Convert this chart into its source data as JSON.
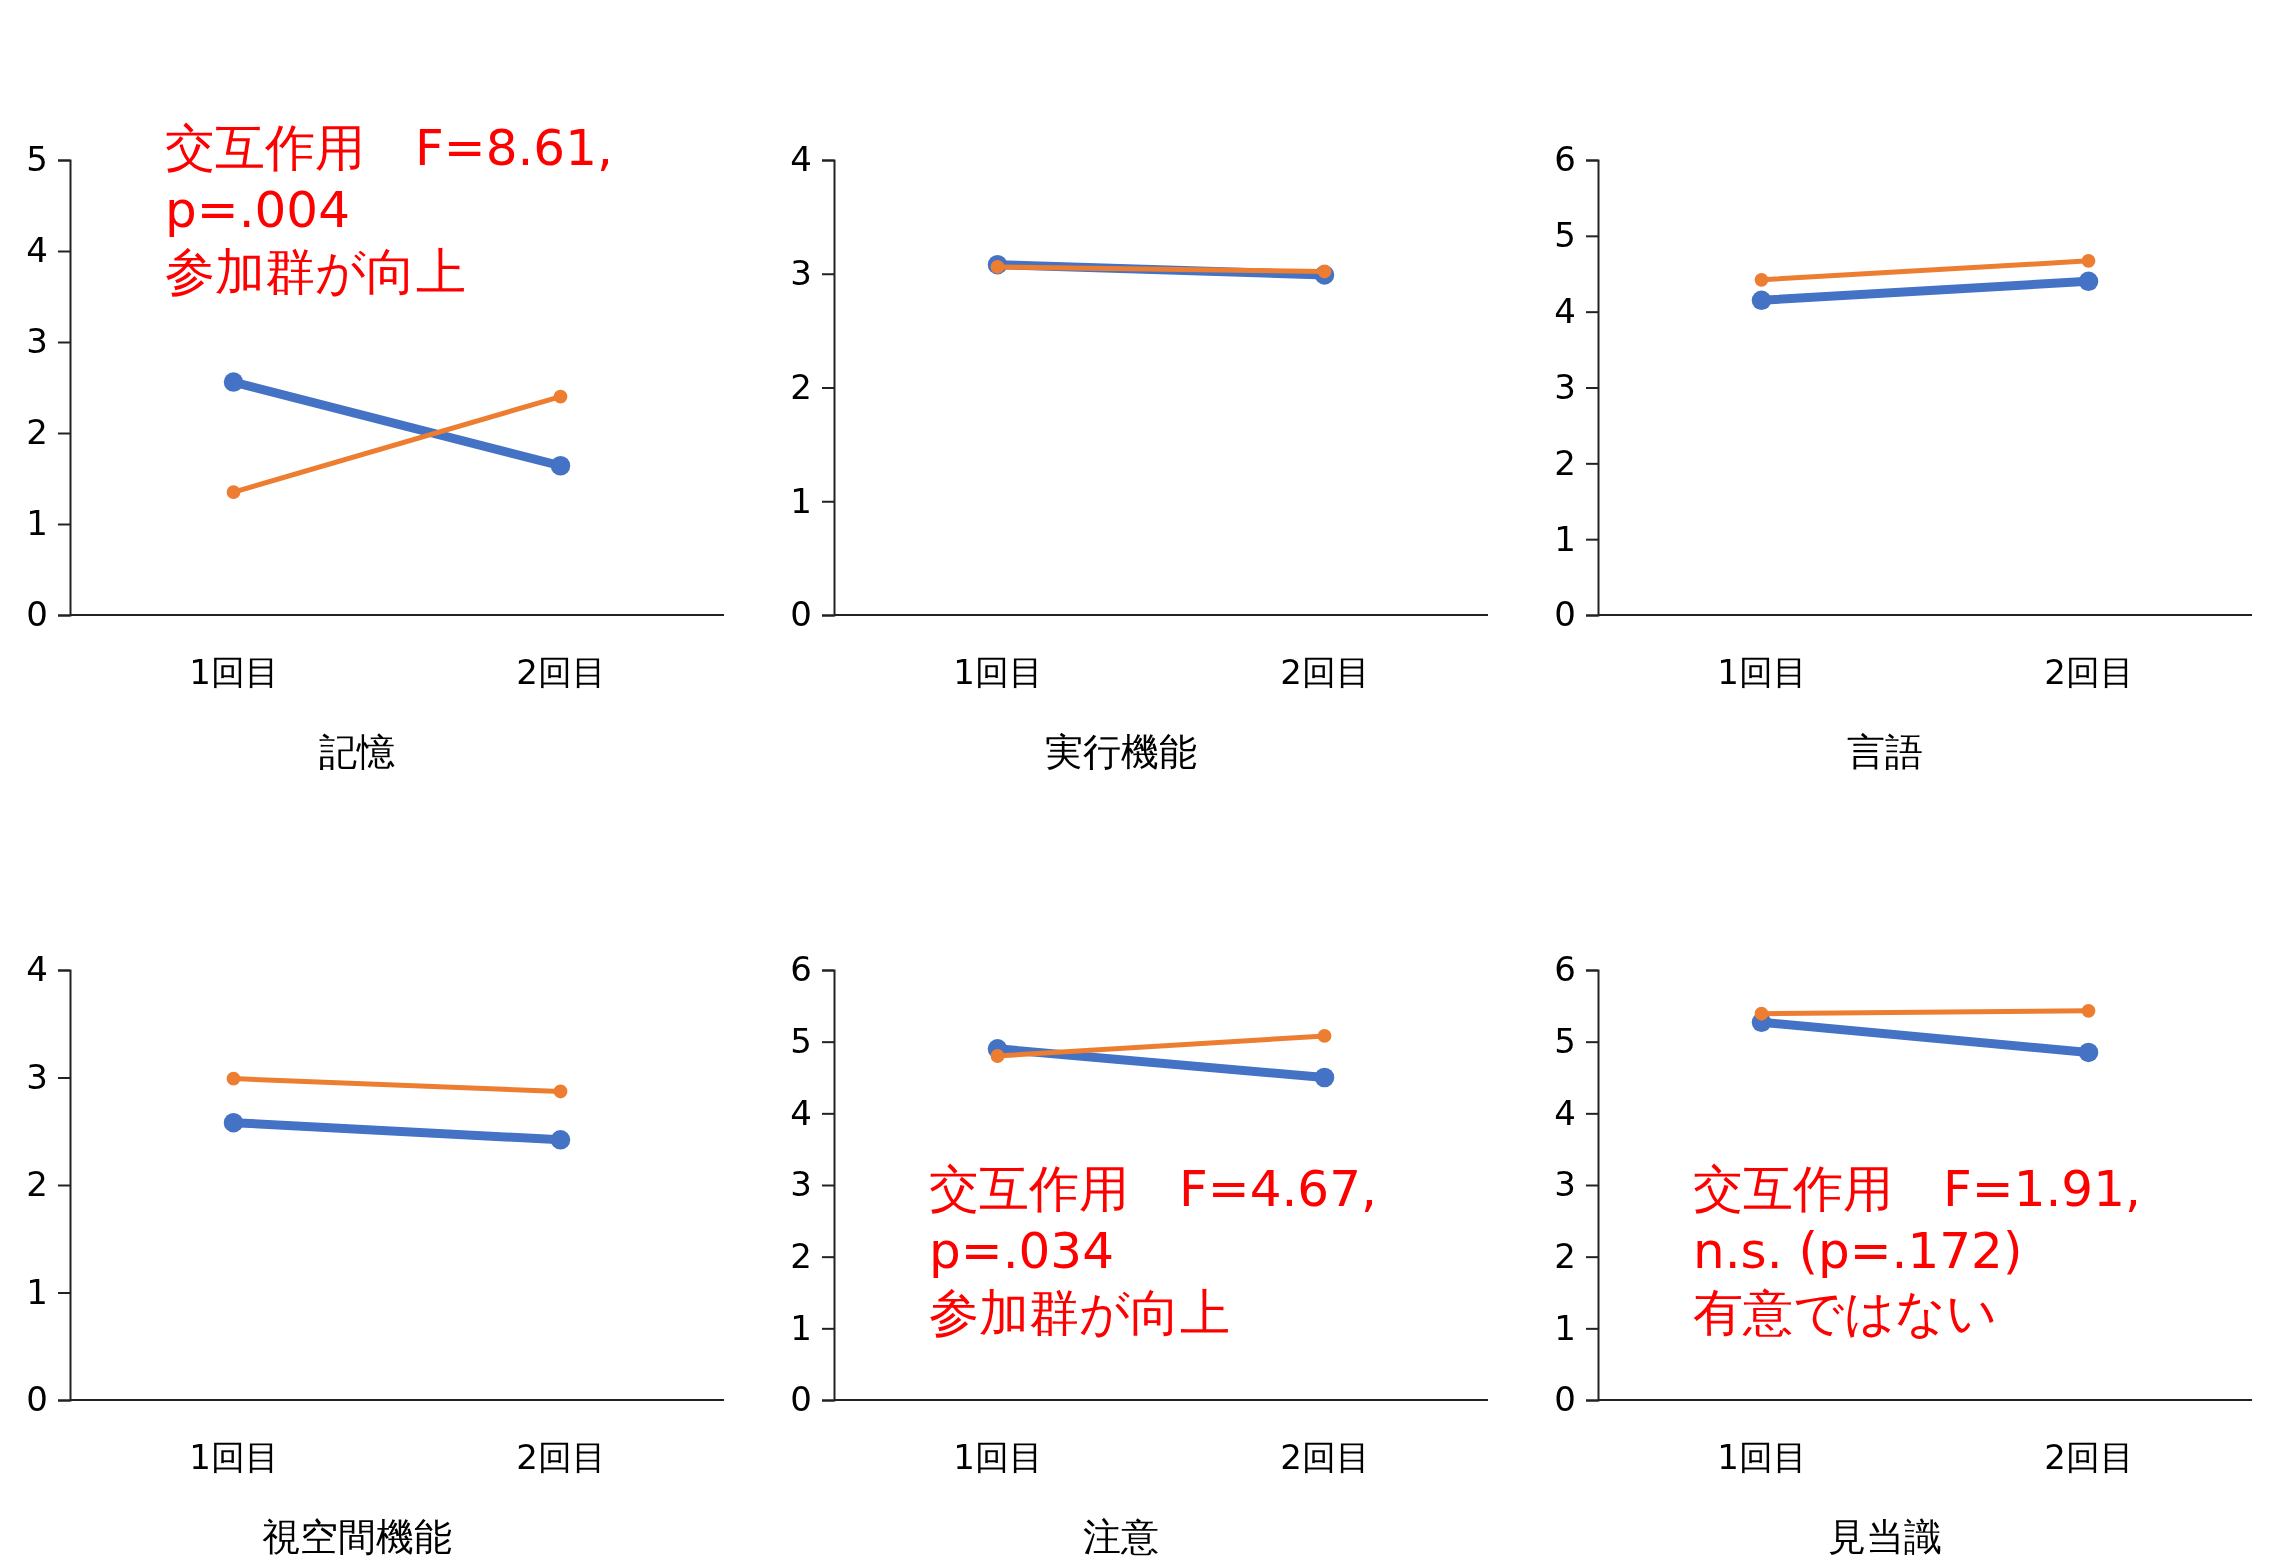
{
  "chart_data": [
    {
      "type": "line",
      "xlabel": "記憶",
      "categories": [
        "1回目",
        "2回目"
      ],
      "ylim": [
        0,
        5
      ],
      "yticks": [
        0,
        1,
        2,
        3,
        4,
        5
      ],
      "marker": "circle",
      "annotations": [
        "交互作用　F=8.61,",
        "p=.004",
        "参加群が向上"
      ],
      "series": [
        {
          "color": "#4472c4",
          "values": [
            2.56,
            1.64
          ]
        },
        {
          "color": "#ed7d31",
          "values": [
            1.35,
            2.4
          ]
        }
      ]
    },
    {
      "type": "line",
      "xlabel": "実行機能",
      "categories": [
        "1回目",
        "2回目"
      ],
      "ylim": [
        0,
        4
      ],
      "yticks": [
        0,
        1,
        2,
        3,
        4
      ],
      "marker": "circle",
      "series": [
        {
          "color": "#4472c4",
          "values": [
            3.08,
            2.99
          ]
        },
        {
          "color": "#ed7d31",
          "values": [
            3.06,
            3.02
          ]
        }
      ]
    },
    {
      "type": "line",
      "xlabel": "言語",
      "categories": [
        "1回目",
        "2回目"
      ],
      "ylim": [
        0,
        6
      ],
      "yticks": [
        0,
        1,
        2,
        3,
        4,
        5,
        6
      ],
      "marker": "circle",
      "series": [
        {
          "color": "#4472c4",
          "values": [
            4.15,
            4.4
          ]
        },
        {
          "color": "#ed7d31",
          "values": [
            4.42,
            4.67
          ]
        }
      ]
    },
    {
      "type": "line",
      "xlabel": "視空間機能",
      "categories": [
        "1回目",
        "2回目"
      ],
      "ylim": [
        0,
        4
      ],
      "yticks": [
        0,
        1,
        2,
        3,
        4
      ],
      "marker": "circle",
      "series": [
        {
          "color": "#4472c4",
          "values": [
            2.58,
            2.42
          ]
        },
        {
          "color": "#ed7d31",
          "values": [
            2.99,
            2.87
          ]
        }
      ]
    },
    {
      "type": "line",
      "xlabel": "注意",
      "categories": [
        "1回目",
        "2回目"
      ],
      "ylim": [
        0,
        6
      ],
      "yticks": [
        0,
        1,
        2,
        3,
        4,
        5,
        6
      ],
      "marker": "circle",
      "annotations": [
        "交互作用　F=4.67,",
        "p=.034",
        "参加群が向上"
      ],
      "series": [
        {
          "color": "#4472c4",
          "values": [
            4.9,
            4.5
          ]
        },
        {
          "color": "#ed7d31",
          "values": [
            4.8,
            5.08
          ]
        }
      ]
    },
    {
      "type": "line",
      "xlabel": "見当識",
      "categories": [
        "1回目",
        "2回目"
      ],
      "ylim": [
        0,
        6
      ],
      "yticks": [
        0,
        1,
        2,
        3,
        4,
        5,
        6
      ],
      "marker": "circle",
      "annotations": [
        "交互作用　F=1.91,",
        "n.s. (p=.172)",
        "有意ではない"
      ],
      "series": [
        {
          "color": "#4472c4",
          "values": [
            5.27,
            4.85
          ]
        },
        {
          "color": "#ed7d31",
          "values": [
            5.39,
            5.43
          ]
        }
      ]
    }
  ]
}
